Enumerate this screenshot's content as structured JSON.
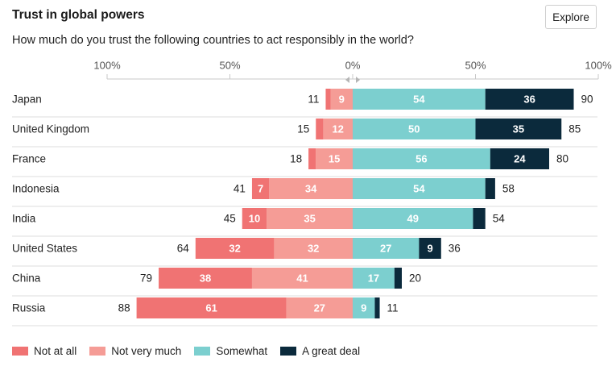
{
  "header": {
    "title": "Trust in global powers",
    "subtitle": "How much do you trust the following countries to act responsibly in the world?",
    "explore_label": "Explore"
  },
  "colors": {
    "not_at_all": "#f07373",
    "not_very_much": "#f59c96",
    "somewhat": "#7ccfcf",
    "great_deal": "#0b2a3c",
    "label_dark": "#222222",
    "grid": "#dddddd"
  },
  "chart_data": {
    "type": "bar",
    "orientation": "horizontal-diverging-stacked",
    "title": "Trust in global powers",
    "subtitle": "How much do you trust the following countries to act responsibly in the world?",
    "axis_ticks": [
      "100%",
      "50%",
      "0%",
      "50%",
      "100%"
    ],
    "xlim": [
      -100,
      100
    ],
    "categories": [
      "Japan",
      "United Kingdom",
      "France",
      "Indonesia",
      "India",
      "United States",
      "China",
      "Russia"
    ],
    "series": [
      {
        "name": "Not at all",
        "side": "negative",
        "values": [
          2,
          3,
          3,
          7,
          10,
          32,
          38,
          61
        ],
        "labels": [
          "",
          "",
          "",
          "7",
          "10",
          "32",
          "38",
          "61"
        ]
      },
      {
        "name": "Not very much",
        "side": "negative",
        "values": [
          9,
          12,
          15,
          34,
          35,
          32,
          41,
          27
        ],
        "labels": [
          "9",
          "12",
          "15",
          "34",
          "35",
          "32",
          "41",
          "27"
        ]
      },
      {
        "name": "Somewhat",
        "side": "positive",
        "values": [
          54,
          50,
          56,
          54,
          49,
          27,
          17,
          9
        ],
        "labels": [
          "54",
          "50",
          "56",
          "54",
          "49",
          "27",
          "17",
          "9"
        ]
      },
      {
        "name": "A great deal",
        "side": "positive",
        "values": [
          36,
          35,
          24,
          4,
          5,
          9,
          3,
          2
        ],
        "labels": [
          "36",
          "35",
          "24",
          "",
          "",
          "9",
          "",
          ""
        ]
      }
    ],
    "negative_totals": [
      "11",
      "15",
      "18",
      "41",
      "45",
      "64",
      "79",
      "88"
    ],
    "positive_totals": [
      "90",
      "85",
      "80",
      "58",
      "54",
      "36",
      "20",
      "11"
    ],
    "legend": [
      "Not at all",
      "Not very much",
      "Somewhat",
      "A great deal"
    ],
    "legend_position": "bottom-left"
  }
}
